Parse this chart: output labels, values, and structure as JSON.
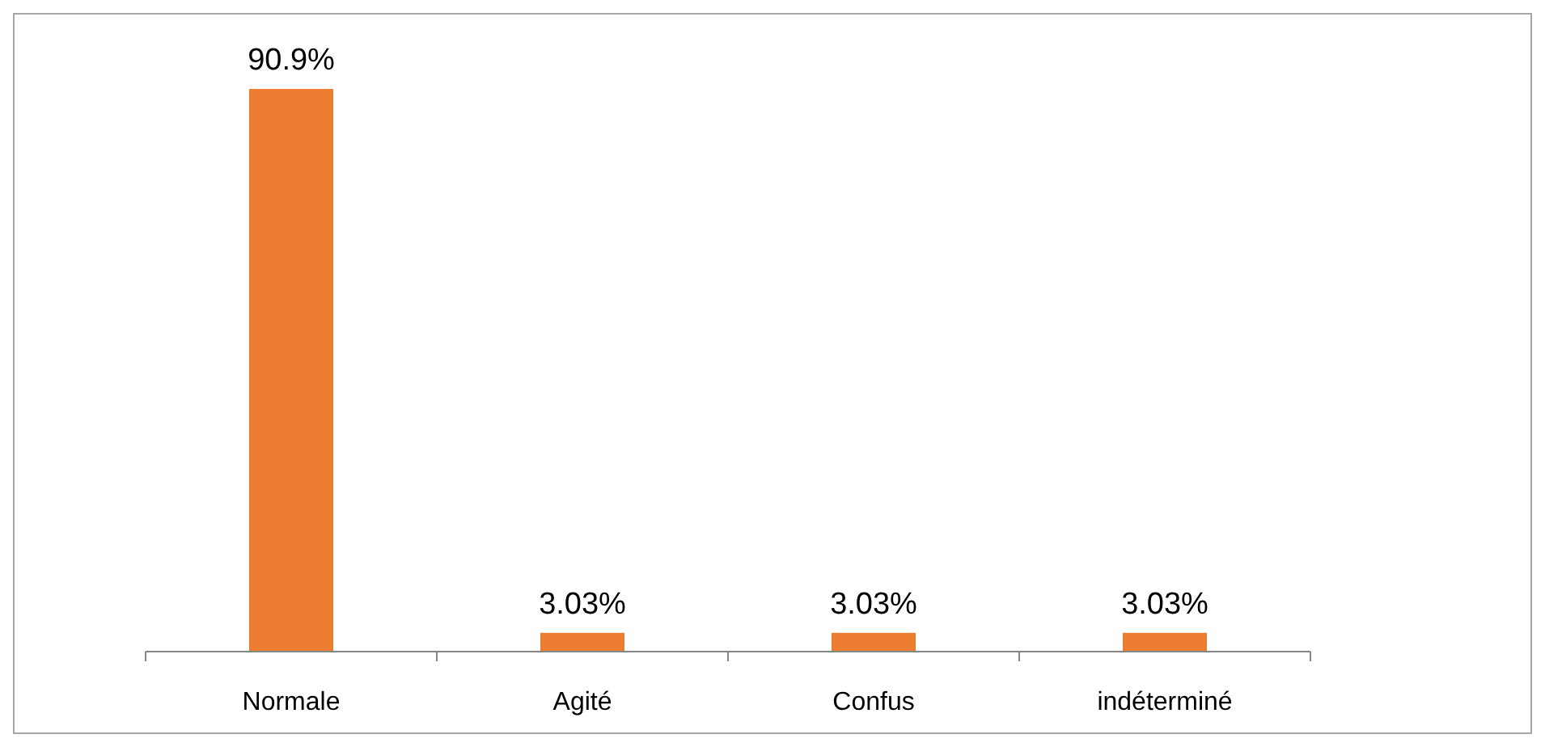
{
  "chart_data": {
    "type": "bar",
    "categories": [
      "Normale",
      "Agité",
      "Confus",
      "indéterminé"
    ],
    "values": [
      90.9,
      3.03,
      3.03,
      3.03
    ],
    "value_labels": [
      "90.9%",
      "3.03%",
      "3.03%",
      "3.03%"
    ],
    "color": "#ed7d31"
  }
}
